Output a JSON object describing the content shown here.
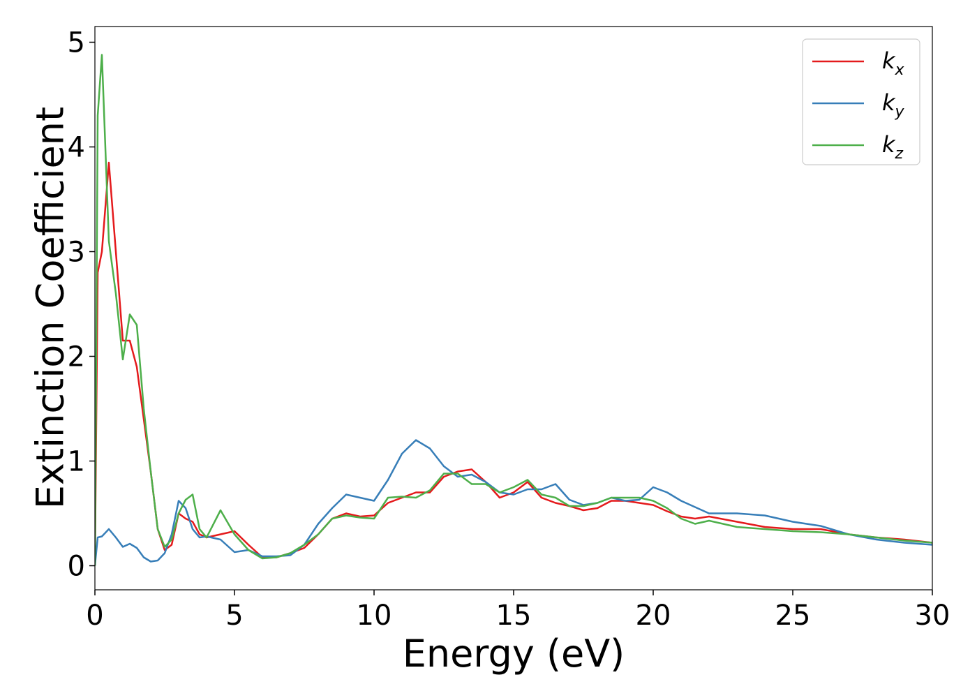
{
  "chart_data": {
    "type": "line",
    "xlabel": "Energy (eV)",
    "ylabel": "Extinction Coefficient",
    "xlim": [
      0,
      30
    ],
    "ylim": [
      -0.23,
      5.15
    ],
    "xticks": [
      0,
      5,
      10,
      15,
      20,
      25,
      30
    ],
    "yticks": [
      0,
      1,
      2,
      3,
      4,
      5
    ],
    "legend": "upper right",
    "x": [
      0,
      0.1,
      0.25,
      0.5,
      0.75,
      1,
      1.25,
      1.5,
      1.75,
      2,
      2.25,
      2.5,
      2.75,
      3,
      3.25,
      3.5,
      3.75,
      4,
      4.5,
      5,
      5.5,
      6,
      6.5,
      7,
      7.5,
      8,
      8.5,
      9,
      9.5,
      10,
      10.5,
      11,
      11.5,
      12,
      12.5,
      13,
      13.5,
      14,
      14.5,
      15,
      15.5,
      16,
      16.5,
      17,
      17.5,
      18,
      18.5,
      19,
      19.5,
      20,
      20.5,
      21,
      21.5,
      22,
      23,
      24,
      25,
      26,
      27,
      28,
      29,
      30
    ],
    "series": [
      {
        "name": "kx",
        "color": "#e41a1c",
        "values": [
          0,
          2.8,
          3.0,
          3.85,
          3.0,
          2.15,
          2.15,
          1.9,
          1.4,
          0.9,
          0.35,
          0.15,
          0.2,
          0.5,
          0.45,
          0.42,
          0.3,
          0.27,
          0.3,
          0.33,
          0.2,
          0.08,
          0.08,
          0.12,
          0.17,
          0.3,
          0.45,
          0.5,
          0.47,
          0.48,
          0.6,
          0.65,
          0.7,
          0.7,
          0.85,
          0.9,
          0.92,
          0.8,
          0.65,
          0.7,
          0.8,
          0.65,
          0.6,
          0.57,
          0.53,
          0.55,
          0.62,
          0.62,
          0.6,
          0.58,
          0.52,
          0.47,
          0.45,
          0.47,
          0.42,
          0.37,
          0.35,
          0.35,
          0.3,
          0.27,
          0.25,
          0.22
        ]
      },
      {
        "name": "ky",
        "color": "#377eb8",
        "values": [
          0,
          0.27,
          0.28,
          0.35,
          0.27,
          0.18,
          0.21,
          0.17,
          0.08,
          0.04,
          0.05,
          0.12,
          0.3,
          0.62,
          0.55,
          0.35,
          0.27,
          0.28,
          0.25,
          0.13,
          0.15,
          0.09,
          0.09,
          0.1,
          0.2,
          0.4,
          0.55,
          0.68,
          0.65,
          0.62,
          0.82,
          1.07,
          1.2,
          1.12,
          0.95,
          0.85,
          0.87,
          0.8,
          0.7,
          0.68,
          0.73,
          0.73,
          0.78,
          0.63,
          0.58,
          0.6,
          0.65,
          0.62,
          0.63,
          0.75,
          0.7,
          0.62,
          0.56,
          0.5,
          0.5,
          0.48,
          0.42,
          0.38,
          0.3,
          0.25,
          0.22,
          0.2
        ]
      },
      {
        "name": "kz",
        "color": "#4daf4a",
        "values": [
          0,
          4.3,
          4.88,
          3.1,
          2.6,
          1.97,
          2.4,
          2.3,
          1.5,
          0.9,
          0.35,
          0.18,
          0.25,
          0.5,
          0.63,
          0.68,
          0.35,
          0.27,
          0.53,
          0.3,
          0.15,
          0.07,
          0.08,
          0.12,
          0.2,
          0.3,
          0.45,
          0.48,
          0.46,
          0.45,
          0.65,
          0.66,
          0.65,
          0.72,
          0.88,
          0.88,
          0.78,
          0.78,
          0.7,
          0.75,
          0.82,
          0.68,
          0.65,
          0.57,
          0.57,
          0.6,
          0.65,
          0.65,
          0.65,
          0.62,
          0.55,
          0.45,
          0.4,
          0.43,
          0.37,
          0.35,
          0.33,
          0.32,
          0.3,
          0.27,
          0.24,
          0.22
        ]
      }
    ]
  }
}
